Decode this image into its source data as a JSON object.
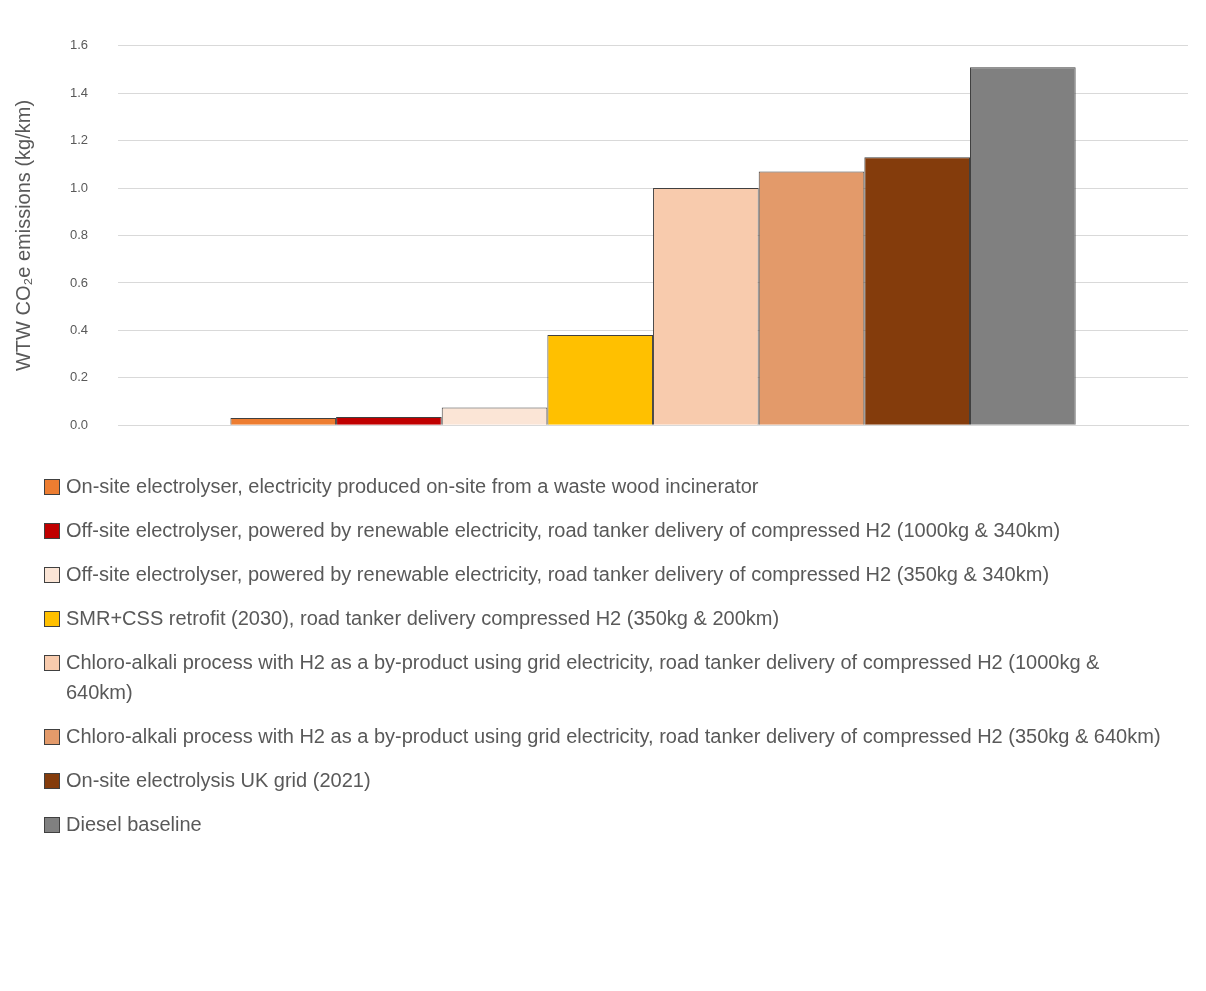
{
  "chart_data": {
    "type": "bar",
    "ylabel": "WTW CO₂e emissions (kg/km)",
    "categories": [
      null
    ],
    "series": [
      {
        "name": "On-site electrolyser, electricity produced on-site from a waste wood incinerator",
        "color": "#ed7d31",
        "values": [
          0.03
        ]
      },
      {
        "name": "Off-site electrolyser, powered by renewable electricity, road tanker delivery of compressed H2 (1000kg & 340km)",
        "color": "#c00000",
        "values": [
          0.035
        ]
      },
      {
        "name": "Off-site electrolyser, powered by renewable electricity, road tanker delivery of compressed H2 (350kg & 340km)",
        "color": "#fbe5d6",
        "values": [
          0.075
        ]
      },
      {
        "name": "SMR+CSS retrofit (2030), road tanker delivery compressed H2 (350kg & 200km)",
        "color": "#ffc000",
        "values": [
          0.38
        ]
      },
      {
        "name": "Chloro-alkali process with H2 as a by-product using grid electricity, road tanker delivery of compressed H2 (1000kg & 640km)",
        "color": "#f8cbad",
        "values": [
          1.0
        ]
      },
      {
        "name": "Chloro-alkali process with H2 as a by-product using grid electricity, road tanker delivery of compressed H2 (350kg & 640km)",
        "color": "#e39a6a",
        "values": [
          1.07
        ]
      },
      {
        "name": "On-site electrolysis UK grid (2021)",
        "color": "#843c0c",
        "values": [
          1.13
        ]
      },
      {
        "name": "Diesel baseline",
        "color": "#808080",
        "values": [
          1.51
        ]
      }
    ],
    "ylim": [
      0,
      1.6
    ],
    "yticks": [
      {
        "value": 0,
        "label": "0.0"
      },
      0.2,
      0.4,
      0.6,
      0.8,
      {
        "value": 1,
        "label": "1.0"
      },
      1.2,
      1.4,
      1.6
    ],
    "grid": "y",
    "legend": "bottom"
  }
}
